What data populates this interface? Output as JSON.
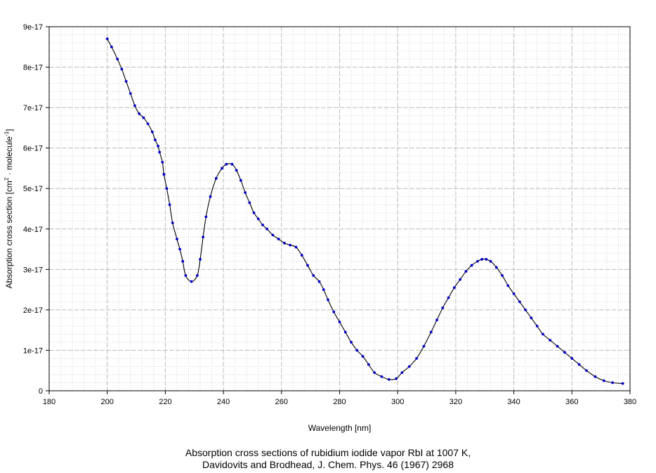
{
  "chart_data": {
    "type": "line",
    "title": "",
    "xlabel": "Wavelength [nm]",
    "ylabel": {
      "base": "Absorption cross section [cm",
      "sup1": "2",
      "mid": " · molecule",
      "sup2": "-1",
      "end": "]"
    },
    "xlim": [
      180,
      380
    ],
    "ylim": [
      0,
      9e-17
    ],
    "x_ticks": [
      180,
      200,
      220,
      240,
      260,
      280,
      300,
      320,
      340,
      360,
      380
    ],
    "y_ticks": [
      0,
      1e-17,
      2e-17,
      3e-17,
      4e-17,
      5e-17,
      6e-17,
      7e-17,
      8e-17,
      9e-17
    ],
    "y_tick_labels": [
      "0",
      "1e-17",
      "2e-17",
      "3e-17",
      "4e-17",
      "5e-17",
      "6e-17",
      "7e-17",
      "8e-17",
      "9e-17"
    ],
    "grid": true,
    "line_color": "#000000",
    "marker_color": "#0000cc",
    "series": [
      {
        "x": [
          200,
          201.5,
          203.5,
          205,
          206.5,
          208,
          209.5,
          211,
          212.5,
          214,
          215.5,
          216.5,
          217.5,
          218,
          219,
          219.5,
          220.5,
          221.5,
          222.5,
          224,
          225,
          226,
          227,
          229,
          231,
          232,
          233,
          234,
          235.5,
          237.5,
          239.5,
          241,
          243,
          244.5,
          246,
          247.5,
          249,
          250.5,
          252,
          253.5,
          255,
          257,
          259,
          261,
          263,
          265,
          267,
          269,
          271,
          273,
          274.5,
          276,
          278,
          280,
          282,
          284,
          286,
          288,
          290,
          292,
          294.5,
          297,
          299.5,
          301.5,
          304,
          306.5,
          309,
          311.5,
          313.5,
          315.5,
          317.5,
          319.5,
          321.5,
          323.5,
          325.5,
          327.5,
          329,
          330.5,
          332,
          334,
          336,
          338,
          340,
          342,
          344,
          346,
          348,
          350,
          352.5,
          355,
          357.5,
          360,
          362.5,
          365,
          368,
          371,
          374,
          377.5
        ],
        "y": [
          8.7e-17,
          8.5e-17,
          8.2e-17,
          7.95e-17,
          7.65e-17,
          7.35e-17,
          7.05e-17,
          6.85e-17,
          6.75e-17,
          6.6e-17,
          6.4e-17,
          6.2e-17,
          6.05e-17,
          5.9e-17,
          5.65e-17,
          5.35e-17,
          5e-17,
          4.6e-17,
          4.15e-17,
          3.75e-17,
          3.5e-17,
          3.2e-17,
          2.85e-17,
          2.7e-17,
          2.85e-17,
          3.25e-17,
          3.8e-17,
          4.3e-17,
          4.8e-17,
          5.25e-17,
          5.5e-17,
          5.6e-17,
          5.6e-17,
          5.45e-17,
          5.2e-17,
          4.9e-17,
          4.65e-17,
          4.4e-17,
          4.25e-17,
          4.1e-17,
          4e-17,
          3.85e-17,
          3.75e-17,
          3.65e-17,
          3.6e-17,
          3.55e-17,
          3.35e-17,
          3.1e-17,
          2.85e-17,
          2.7e-17,
          2.5e-17,
          2.25e-17,
          1.95e-17,
          1.7e-17,
          1.45e-17,
          1.2e-17,
          1e-17,
          8.5e-18,
          6.5e-18,
          4.5e-18,
          3.5e-18,
          2.8e-18,
          3e-18,
          4.5e-18,
          6e-18,
          8e-18,
          1.1e-17,
          1.45e-17,
          1.75e-17,
          2.05e-17,
          2.3e-17,
          2.55e-17,
          2.75e-17,
          2.95e-17,
          3.1e-17,
          3.2e-17,
          3.25e-17,
          3.25e-17,
          3.2e-17,
          3.05e-17,
          2.85e-17,
          2.6e-17,
          2.4e-17,
          2.2e-17,
          2e-17,
          1.8e-17,
          1.6e-17,
          1.4e-17,
          1.25e-17,
          1.1e-17,
          9.5e-18,
          8e-18,
          6.5e-18,
          5e-18,
          3.5e-18,
          2.5e-18,
          2e-18,
          1.8e-18
        ]
      }
    ]
  },
  "caption": {
    "line1": "Absorption cross sections of rubidium iodide vapor RbI at 1007 K,",
    "line2": "Davidovits and Brodhead, J. Chem. Phys. 46 (1967) 2968"
  }
}
